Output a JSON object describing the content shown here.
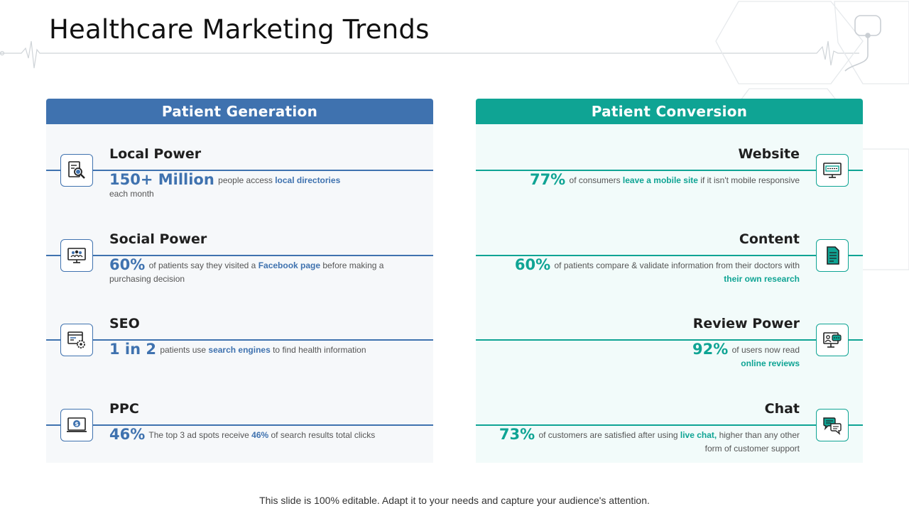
{
  "title": "Healthcare Marketing Trends",
  "colors": {
    "generation": "#3f72af",
    "conversion": "#0fa494"
  },
  "generation": {
    "header": "Patient Generation",
    "items": [
      {
        "title": "Local Power",
        "stat": "150+ Million",
        "text1": " people access ",
        "hl1": "local directories",
        "text2": " each month",
        "hl2": "",
        "text3": "",
        "icon": "search-document-icon"
      },
      {
        "title": "Social Power",
        "stat": "60%",
        "text1": " of patients say they visited a ",
        "hl1": "Facebook page",
        "text2": " before making a purchasing decision",
        "hl2": "",
        "text3": "",
        "icon": "social-monitor-icon"
      },
      {
        "title": "SEO",
        "stat": "1 in 2",
        "text1": " patients use ",
        "hl1": "search engines",
        "text2": " to find health information",
        "hl2": "",
        "text3": "",
        "icon": "seo-gear-icon"
      },
      {
        "title": "PPC",
        "stat": "46%",
        "text1": " The top 3 ad spots receive ",
        "hl1": "46%",
        "text2": " of search results total clicks",
        "hl2": "",
        "text3": "",
        "icon": "pay-per-click-icon"
      }
    ]
  },
  "conversion": {
    "header": "Patient Conversion",
    "items": [
      {
        "title": "Website",
        "stat": "77%",
        "text1": " of consumers ",
        "hl1": "leave a mobile site",
        "text2": " if it isn't mobile responsive",
        "hl2": "",
        "text3": "",
        "icon": "website-icon"
      },
      {
        "title": "Content",
        "stat": "60%",
        "text1": " of patients compare & validate information from their doctors with ",
        "hl1": "their own research",
        "text2": "",
        "hl2": "",
        "text3": "",
        "icon": "content-document-icon"
      },
      {
        "title": "Review Power",
        "stat": "92%",
        "text1": " of users now read ",
        "hl1": "online reviews",
        "text2": "",
        "hl2": "",
        "text3": "",
        "icon": "review-icon"
      },
      {
        "title": "Chat",
        "stat": "73%",
        "text1": " of customers are satisfied after using ",
        "hl1": "live chat,",
        "text2": " higher than any other form of customer support",
        "hl2": "",
        "text3": "",
        "icon": "chat-bubbles-icon"
      }
    ]
  },
  "footer": "This slide is 100% editable. Adapt it to your needs and capture your audience's attention."
}
